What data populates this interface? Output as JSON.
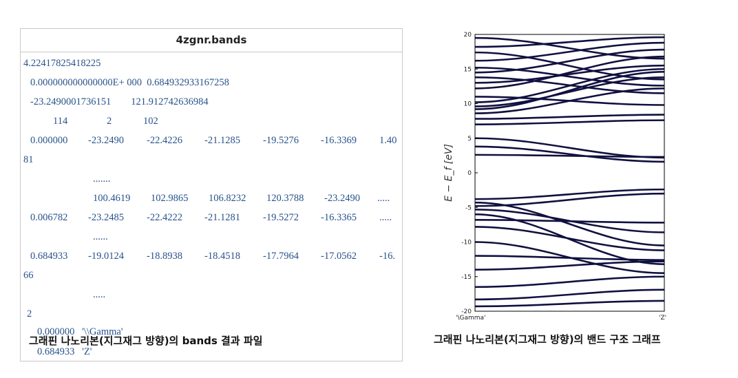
{
  "file": {
    "title": "4zgnr.bands",
    "line1": "4.22417825418225",
    "line2": "0.000000000000000E+ 000  0.684932933167258",
    "line3": "-23.2490001736151        121.912742636984",
    "header_values": [
      "114",
      "2",
      "102"
    ],
    "row1": [
      "0.000000",
      "-23.2490",
      "-22.4226",
      "-21.1285",
      "-19.5276",
      "-16.3369",
      "1.40"
    ],
    "row1_wrap": "81",
    "ellipsis1": ".......",
    "row2": [
      "100.4619",
      "102.9865",
      "106.8232",
      "120.3788",
      "-23.2490",
      "....."
    ],
    "row3": [
      "0.006782",
      "-23.2485",
      "-22.4222",
      "-21.1281",
      "-19.5272",
      "-16.3365",
      "....."
    ],
    "ellipsis2": "......",
    "row4": [
      "0.684933",
      "-19.0124",
      "-18.8938",
      "-18.4518",
      "-17.7964",
      "-17.0562",
      "-16."
    ],
    "row4_wrap": "66",
    "ellipsis3": ".....",
    "npoints": "2",
    "label1": "0.000000   '\\\\Gamma'",
    "label2": "0.684933   'Z'"
  },
  "left_caption": "그래핀 나노리본(지그재그 방향)의 bands 결과 파일",
  "right_caption": "그래핀 나노리본(지그재그 방향)의 밴드 구조 그래프",
  "chart_data": {
    "type": "line",
    "title": "",
    "xlabel": "",
    "ylabel": "E − E_f  [eV]",
    "x_ticks": [
      "\\Gamma",
      "Z"
    ],
    "ylim": [
      -20,
      20
    ],
    "y_ticks": [
      "20",
      "15",
      "10",
      "5",
      "0",
      "-5",
      "-10",
      "-15",
      "-20"
    ],
    "line_color": "#101040",
    "series": [
      {
        "values": [
          19.5,
          16.5
        ]
      },
      {
        "values": [
          18.2,
          19.6
        ]
      },
      {
        "values": [
          17.4,
          13.5
        ]
      },
      {
        "values": [
          16.2,
          18.8
        ]
      },
      {
        "values": [
          15.2,
          12.6
        ]
      },
      {
        "values": [
          14.5,
          17.8
        ]
      },
      {
        "values": [
          13.8,
          11.5
        ]
      },
      {
        "values": [
          13.0,
          15.5
        ]
      },
      {
        "values": [
          12.2,
          16.8
        ]
      },
      {
        "values": [
          11.0,
          9.8
        ]
      },
      {
        "values": [
          10.2,
          15.0
        ]
      },
      {
        "values": [
          9.6,
          13.8
        ]
      },
      {
        "values": [
          9.2,
          14.6
        ]
      },
      {
        "values": [
          8.6,
          12.2
        ]
      },
      {
        "values": [
          7.8,
          8.4
        ]
      },
      {
        "values": [
          7.0,
          7.6
        ]
      },
      {
        "values": [
          5.0,
          2.2
        ]
      },
      {
        "values": [
          3.8,
          1.6
        ]
      },
      {
        "values": [
          2.6,
          2.3
        ]
      },
      {
        "values": [
          -3.8,
          -2.4
        ]
      },
      {
        "values": [
          -4.3,
          -10.5
        ]
      },
      {
        "values": [
          -4.8,
          -3.0
        ]
      },
      {
        "values": [
          -5.3,
          -8.6
        ]
      },
      {
        "values": [
          -6.0,
          -13.2
        ]
      },
      {
        "values": [
          -6.8,
          -7.2
        ]
      },
      {
        "values": [
          -7.8,
          -11.2
        ]
      },
      {
        "values": [
          -10.0,
          -14.5
        ]
      },
      {
        "values": [
          -12.0,
          -12.6
        ]
      },
      {
        "values": [
          -14.0,
          -12.8
        ]
      },
      {
        "values": [
          -16.5,
          -15.0
        ]
      },
      {
        "values": [
          -18.3,
          -16.9
        ]
      },
      {
        "values": [
          -19.3,
          -18.5
        ]
      }
    ]
  }
}
